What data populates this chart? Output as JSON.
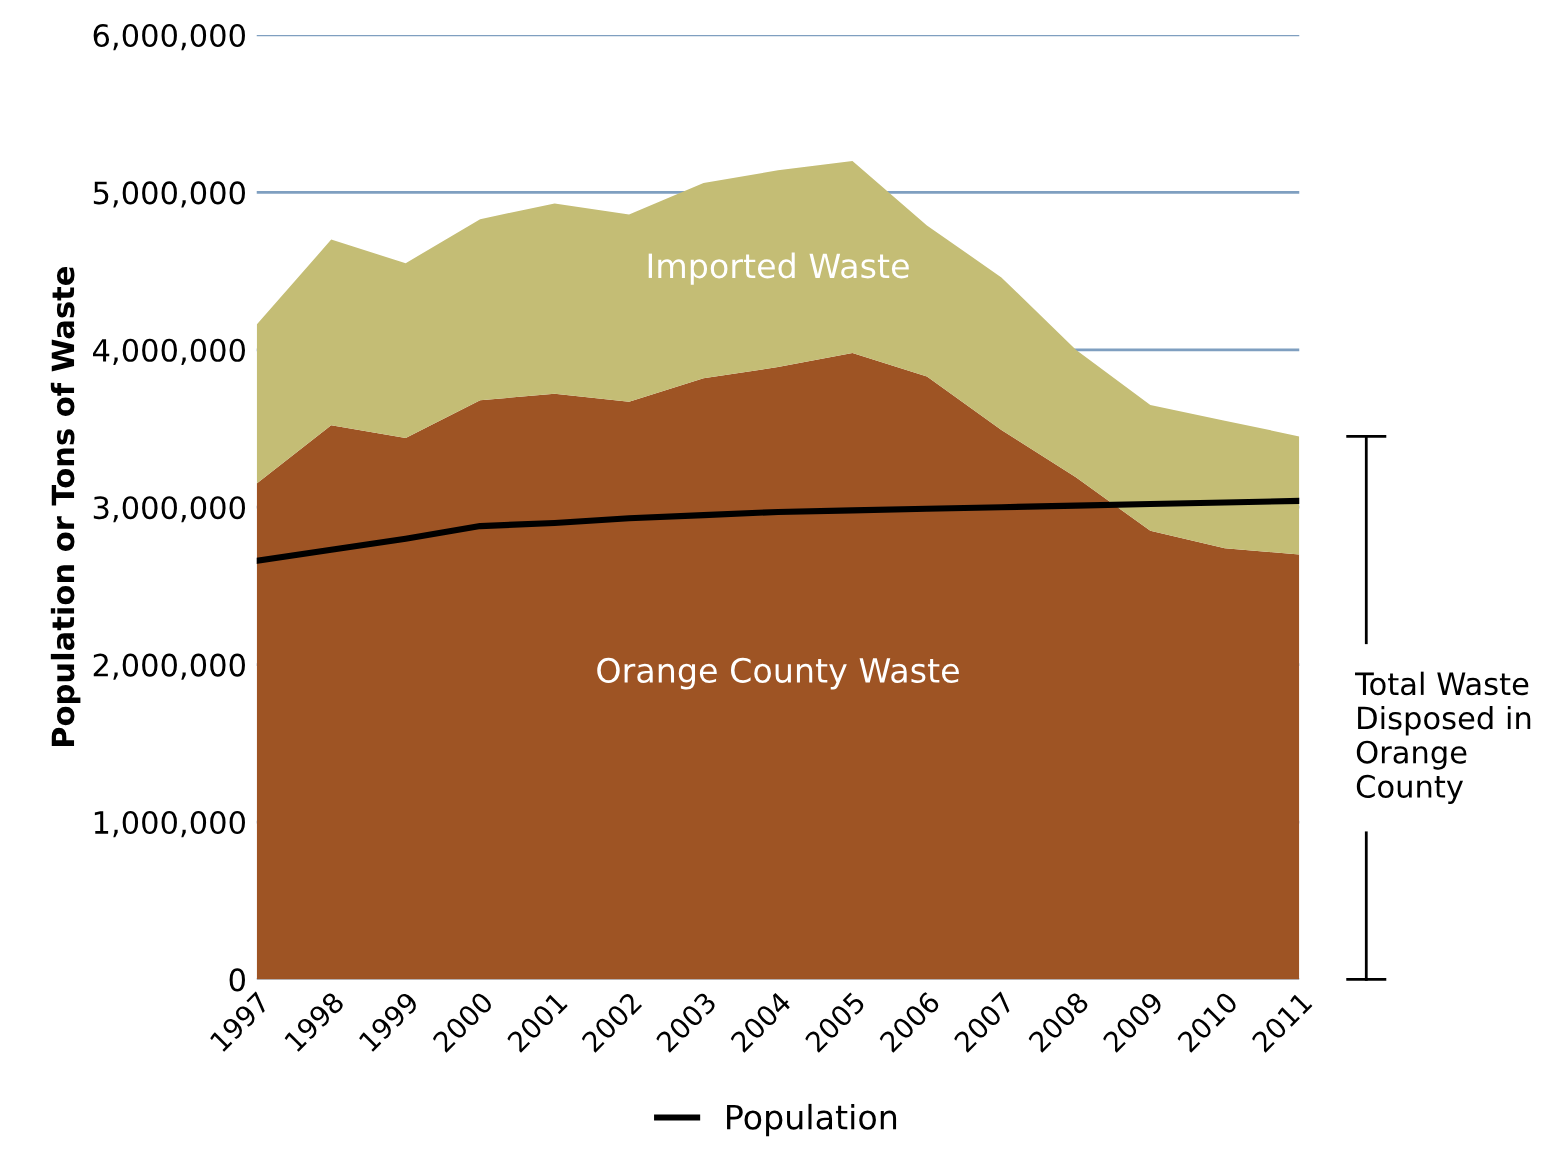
{
  "chart_data": {
    "type": "area",
    "stacked": true,
    "ylabel": "Population or Tons of Waste",
    "categories": [
      "1997",
      "1998",
      "1999",
      "2000",
      "2001",
      "2002",
      "2003",
      "2004",
      "2005",
      "2006",
      "2007",
      "2008",
      "2009",
      "2010",
      "2011"
    ],
    "series": [
      {
        "name": "Orange County Waste",
        "color": "#9e5424",
        "values": [
          3150000,
          3520000,
          3440000,
          3680000,
          3720000,
          3670000,
          3820000,
          3890000,
          3980000,
          3830000,
          3490000,
          3190000,
          2850000,
          2740000,
          2700000
        ]
      },
      {
        "name": "Imported Waste",
        "color": "#c4bd75",
        "values": [
          1010000,
          1180000,
          1110000,
          1150000,
          1210000,
          1190000,
          1240000,
          1250000,
          1220000,
          960000,
          970000,
          810000,
          800000,
          810000,
          750000
        ]
      },
      {
        "name": "Population",
        "type": "line",
        "color": "#000000",
        "values": [
          2660000,
          2730000,
          2800000,
          2880000,
          2900000,
          2930000,
          2950000,
          2970000,
          2980000,
          2990000,
          3000000,
          3010000,
          3020000,
          3030000,
          3040000
        ]
      }
    ],
    "ylim": [
      0,
      6000000
    ],
    "yticks": [
      0,
      {
        "value": 1000000,
        "label": "1,000,000"
      },
      {
        "value": 2000000,
        "label": "2,000,000"
      },
      {
        "value": 3000000,
        "label": "3,000,000"
      },
      {
        "value": 4000000,
        "label": "4,000,000"
      },
      {
        "value": 5000000,
        "label": "5,000,000"
      },
      {
        "value": 6000000,
        "label": "6,000,000"
      }
    ],
    "grid": "y",
    "legend": "bottom",
    "annotations": [
      "Total Waste Disposed in Orange County"
    ]
  }
}
